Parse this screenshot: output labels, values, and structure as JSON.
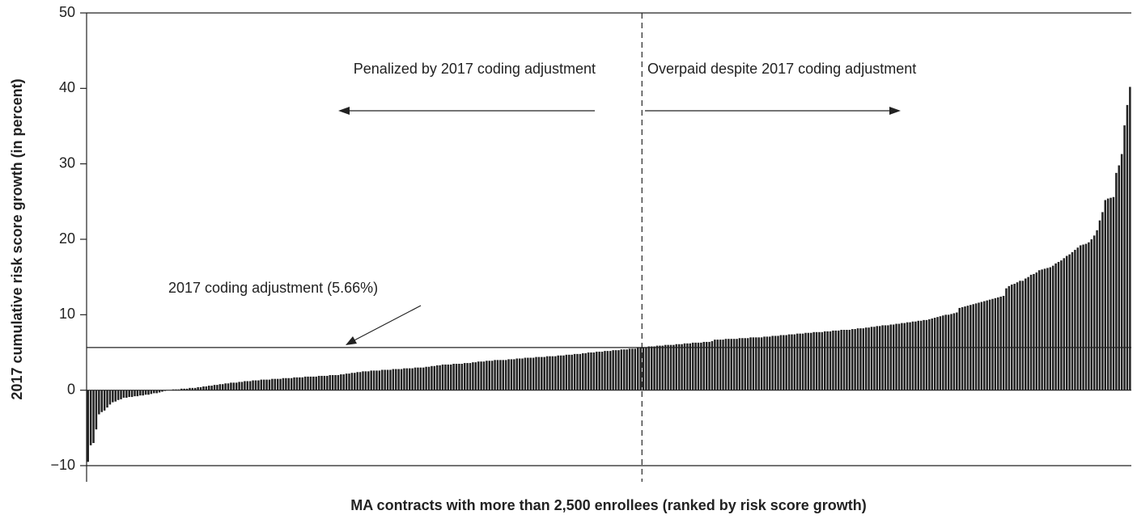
{
  "chart_data": {
    "type": "bar",
    "xlabel": "MA contracts with more than 2,500 enrollees (ranked by risk score growth)",
    "ylabel": "2017 cumulative risk score growth (in percent)",
    "annotations": [
      "Penalized by 2017 coding adjustment",
      "Overpaid despite 2017 coding adjustment"
    ],
    "reference_line": {
      "value": 5.66,
      "label": "2017 coding adjustment (5.66%)"
    },
    "color": "#222222",
    "ylim": [
      -10,
      50
    ],
    "yticks": [
      {
        "value": -10,
        "label": "−10"
      },
      0,
      10,
      20,
      30,
      40,
      50
    ],
    "grid": false,
    "values": [
      -9.5,
      -7.3,
      -7,
      -5.2,
      -3.2,
      -2.9,
      -2.7,
      -2.3,
      -1.9,
      -1.6,
      -1.5,
      -1.3,
      -1.2,
      -1.0,
      -1.0,
      -0.9,
      -0.9,
      -0.8,
      -0.8,
      -0.7,
      -0.7,
      -0.6,
      -0.6,
      -0.5,
      -0.4,
      -0.4,
      -0.3,
      -0.2,
      -0.1,
      0.0,
      0.0,
      0.1,
      0.1,
      0.1,
      0.2,
      0.2,
      0.2,
      0.3,
      0.3,
      0.3,
      0.4,
      0.4,
      0.5,
      0.5,
      0.6,
      0.6,
      0.7,
      0.7,
      0.8,
      0.8,
      0.9,
      0.9,
      1.0,
      1.0,
      1.0,
      1.1,
      1.1,
      1.2,
      1.2,
      1.2,
      1.3,
      1.3,
      1.3,
      1.4,
      1.4,
      1.4,
      1.4,
      1.5,
      1.5,
      1.5,
      1.5,
      1.6,
      1.6,
      1.6,
      1.6,
      1.7,
      1.7,
      1.7,
      1.7,
      1.8,
      1.8,
      1.8,
      1.8,
      1.8,
      1.9,
      1.9,
      1.9,
      1.9,
      2.0,
      2.0,
      2.0,
      2.0,
      2.1,
      2.1,
      2.2,
      2.2,
      2.3,
      2.3,
      2.4,
      2.4,
      2.5,
      2.5,
      2.5,
      2.6,
      2.6,
      2.6,
      2.6,
      2.7,
      2.7,
      2.7,
      2.7,
      2.8,
      2.8,
      2.8,
      2.8,
      2.9,
      2.9,
      2.9,
      2.9,
      3.0,
      3.0,
      3.0,
      3.0,
      3.1,
      3.1,
      3.2,
      3.2,
      3.3,
      3.3,
      3.4,
      3.4,
      3.4,
      3.4,
      3.5,
      3.5,
      3.5,
      3.5,
      3.6,
      3.6,
      3.6,
      3.7,
      3.7,
      3.8,
      3.8,
      3.8,
      3.9,
      3.9,
      3.9,
      4.0,
      4.0,
      4.0,
      4.0,
      4.0,
      4.1,
      4.1,
      4.1,
      4.2,
      4.2,
      4.2,
      4.3,
      4.3,
      4.3,
      4.3,
      4.4,
      4.4,
      4.4,
      4.4,
      4.5,
      4.5,
      4.5,
      4.5,
      4.6,
      4.6,
      4.6,
      4.7,
      4.7,
      4.7,
      4.8,
      4.8,
      4.8,
      4.9,
      4.9,
      5.0,
      5.0,
      5.0,
      5.1,
      5.1,
      5.1,
      5.2,
      5.2,
      5.2,
      5.3,
      5.3,
      5.3,
      5.4,
      5.4,
      5.4,
      5.5,
      5.5,
      5.5,
      5.6,
      5.6,
      5.7,
      5.7,
      5.8,
      5.8,
      5.8,
      5.9,
      5.9,
      5.9,
      6.0,
      6.0,
      6.0,
      6.0,
      6.1,
      6.1,
      6.1,
      6.2,
      6.2,
      6.2,
      6.3,
      6.3,
      6.3,
      6.3,
      6.4,
      6.4,
      6.4,
      6.5,
      6.7,
      6.7,
      6.7,
      6.7,
      6.8,
      6.8,
      6.8,
      6.8,
      6.8,
      6.9,
      6.9,
      6.9,
      6.9,
      7.0,
      7.0,
      7.0,
      7.0,
      7.0,
      7.1,
      7.1,
      7.1,
      7.2,
      7.2,
      7.2,
      7.3,
      7.3,
      7.3,
      7.4,
      7.4,
      7.4,
      7.5,
      7.5,
      7.5,
      7.6,
      7.6,
      7.6,
      7.7,
      7.7,
      7.7,
      7.7,
      7.8,
      7.8,
      7.8,
      7.9,
      7.9,
      7.9,
      8.0,
      8.0,
      8.0,
      8.0,
      8.1,
      8.1,
      8.2,
      8.2,
      8.2,
      8.3,
      8.3,
      8.4,
      8.4,
      8.5,
      8.5,
      8.6,
      8.6,
      8.6,
      8.7,
      8.7,
      8.8,
      8.8,
      8.9,
      8.9,
      9.0,
      9.0,
      9.1,
      9.1,
      9.2,
      9.2,
      9.3,
      9.3,
      9.4,
      9.5,
      9.6,
      9.7,
      9.8,
      9.9,
      10.0,
      10.0,
      10.1,
      10.2,
      10.3,
      10.9,
      11.0,
      11.1,
      11.2,
      11.3,
      11.4,
      11.5,
      11.6,
      11.7,
      11.8,
      11.9,
      12.0,
      12.1,
      12.2,
      12.3,
      12.4,
      12.5,
      13.5,
      13.8,
      14.0,
      14.1,
      14.3,
      14.5,
      14.5,
      14.8,
      15.0,
      15.3,
      15.4,
      15.6,
      15.9,
      16.0,
      16.1,
      16.2,
      16.3,
      16.5,
      16.8,
      17.0,
      17.2,
      17.5,
      17.8,
      18.0,
      18.3,
      18.6,
      18.9,
      19.2,
      19.3,
      19.4,
      19.6,
      20.0,
      20.5,
      21.2,
      22.5,
      23.6,
      25.2,
      25.4,
      25.5,
      25.6,
      28.8,
      29.8,
      31.3,
      35.1,
      37.8,
      40.2
    ]
  }
}
